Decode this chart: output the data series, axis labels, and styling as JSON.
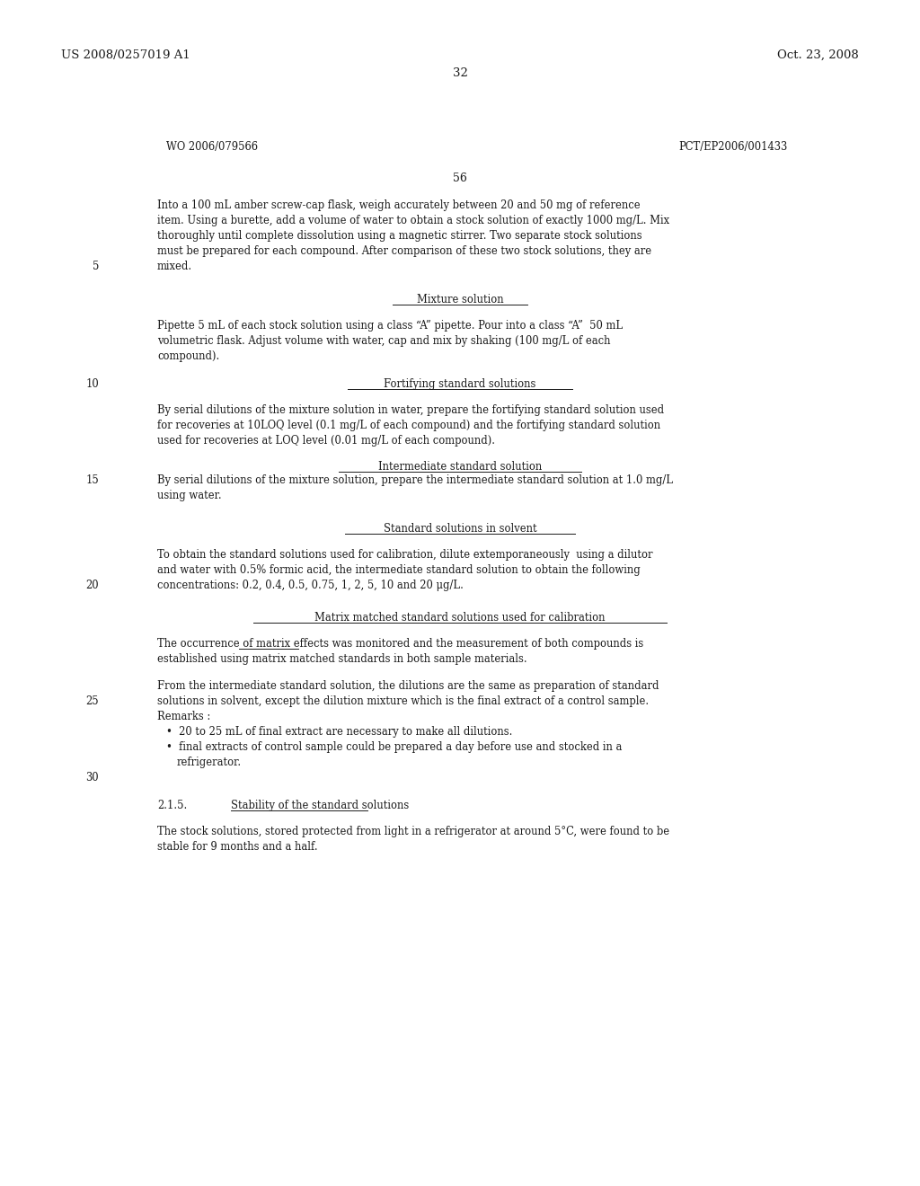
{
  "background_color": "#ffffff",
  "header_left": "US 2008/0257019 A1",
  "header_right": "Oct. 23, 2008",
  "page_number_top": "32",
  "wo_left": "WO 2006/079566",
  "pct_right": "PCT/EP2006/001433",
  "page_number_body": "56"
}
